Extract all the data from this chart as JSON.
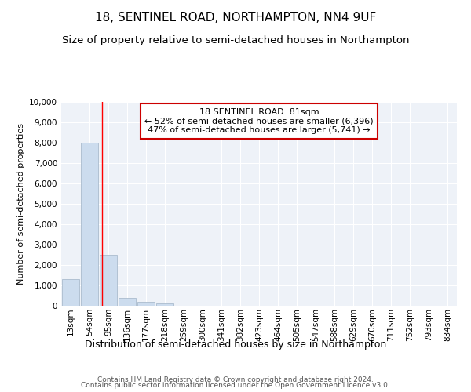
{
  "title": "18, SENTINEL ROAD, NORTHAMPTON, NN4 9UF",
  "subtitle": "Size of property relative to semi-detached houses in Northampton",
  "xlabel_bottom": "Distribution of semi-detached houses by size in Northampton",
  "ylabel": "Number of semi-detached properties",
  "footnote1": "Contains HM Land Registry data © Crown copyright and database right 2024.",
  "footnote2": "Contains public sector information licensed under the Open Government Licence v3.0.",
  "annotation_line1": "18 SENTINEL ROAD: 81sqm",
  "annotation_line2": "← 52% of semi-detached houses are smaller (6,396)",
  "annotation_line3": "47% of semi-detached houses are larger (5,741) →",
  "bar_labels": [
    "13sqm",
    "54sqm",
    "95sqm",
    "136sqm",
    "177sqm",
    "218sqm",
    "259sqm",
    "300sqm",
    "341sqm",
    "382sqm",
    "423sqm",
    "464sqm",
    "505sqm",
    "547sqm",
    "588sqm",
    "629sqm",
    "670sqm",
    "711sqm",
    "752sqm",
    "793sqm",
    "834sqm"
  ],
  "bar_values": [
    1300,
    8000,
    2500,
    400,
    175,
    130,
    0,
    0,
    0,
    0,
    0,
    0,
    0,
    0,
    0,
    0,
    0,
    0,
    0,
    0,
    0
  ],
  "bar_color": "#ccdcee",
  "bar_edge_color": "#aabcce",
  "red_line_x": 1.65,
  "ylim": [
    0,
    10000
  ],
  "yticks": [
    0,
    1000,
    2000,
    3000,
    4000,
    5000,
    6000,
    7000,
    8000,
    9000,
    10000
  ],
  "plot_bg_color": "#eef2f8",
  "grid_color": "#ffffff",
  "annotation_box_color": "#ffffff",
  "annotation_box_edge": "#cc0000",
  "title_fontsize": 11,
  "subtitle_fontsize": 9.5,
  "ylabel_fontsize": 8,
  "xlabel_fontsize": 9,
  "tick_fontsize": 7.5,
  "annotation_fontsize": 8,
  "footnote_fontsize": 6.5
}
